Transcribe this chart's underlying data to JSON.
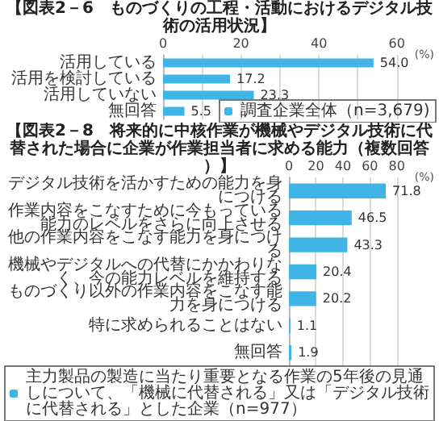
{
  "chart_data": [
    {
      "type": "bar",
      "orientation": "horizontal",
      "title": "【図表2－6　ものづくりの工程・活動におけるデジタル技術の活用状況】",
      "xlabel": "(%)",
      "categories": [
        "活用している",
        "活用を検討している",
        "活用していない",
        "無回答"
      ],
      "series": [
        {
          "name": "調査企業全体（n=3,679)",
          "color": "#41b4e6",
          "values": [
            54.0,
            17.2,
            23.3,
            5.5
          ],
          "value_labels": [
            "54.0",
            "17.2",
            "23.3",
            "5.5"
          ]
        }
      ],
      "xlim": [
        0,
        60
      ],
      "xticks": [
        0,
        20,
        40,
        60
      ],
      "grid": "x",
      "legend": "bottom right"
    },
    {
      "type": "bar",
      "orientation": "horizontal",
      "title": "【図表2－8　将来的に中核作業が機械やデジタル技術に代替された場合に企業が作業担当者に求める能力（複数回答）】",
      "xlabel": "(%)",
      "categories": [
        "デジタル技術を活かすための能力を身につける",
        "作業内容をこなすために今もっている能力のレベルをさらに向上させる",
        "他の作業内容をこなす能力を身につける",
        "機械やデジタルへの代替にかかわりなく、今の能力レベルを維持する",
        "ものづくり以外の作業内容をこなす能力を身につける",
        "特に求められることはない",
        "無回答"
      ],
      "series": [
        {
          "name": "主力製品の製造に当たり重要となる作業の5年後の見通しについて、「機械に代替される」又は「デジタル技術に代替される」とした企業（n=977）",
          "color": "#41b4e6",
          "values": [
            71.8,
            46.5,
            43.3,
            20.4,
            20.2,
            1.1,
            1.9
          ],
          "value_labels": [
            "71.8",
            "46.5",
            "43.3",
            "20.4",
            "20.2",
            "1.1",
            "1.9"
          ]
        }
      ],
      "xlim": [
        0,
        80
      ],
      "xticks": [
        0,
        20,
        40,
        60,
        80
      ],
      "grid": "x",
      "legend": "bottom"
    }
  ]
}
